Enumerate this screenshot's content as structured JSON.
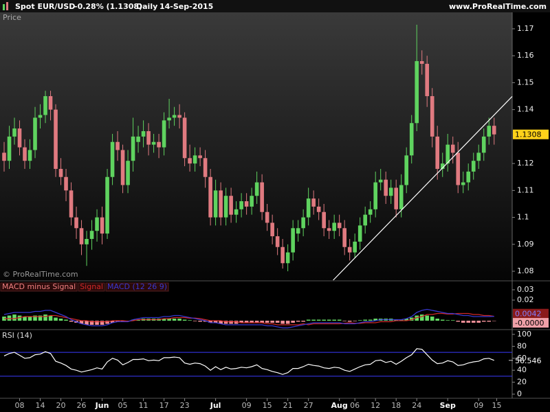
{
  "header": {
    "instrument": "Spot EUR/USD",
    "change": "-0.28% (1.1308)",
    "period": "Daily",
    "date": "14-Sep-2015",
    "site": "www.ProRealTime.com"
  },
  "chart_data": [
    {
      "type": "candlestick",
      "label": "Price",
      "watermark": "© ProRealTime.com",
      "up_color": "#5fd35f",
      "down_color": "#e07a80",
      "open": [
        1.124,
        1.121,
        1.13,
        1.133,
        1.126,
        1.121,
        1.125,
        1.137,
        1.138,
        1.145,
        1.14,
        1.118,
        1.115,
        1.11,
        1.1,
        1.096,
        1.09,
        1.092,
        1.095,
        1.1,
        1.094,
        1.115,
        1.128,
        1.125,
        1.112,
        1.121,
        1.128,
        1.13,
        1.132,
        1.127,
        1.128,
        1.126,
        1.136,
        1.137,
        1.138,
        1.137,
        1.122,
        1.12,
        1.123,
        1.122,
        1.115,
        1.1,
        1.11,
        1.1,
        1.108,
        1.101,
        1.103,
        1.106,
        1.104,
        1.108,
        1.113,
        1.102,
        1.098,
        1.093,
        1.089,
        1.083,
        1.087,
        1.094,
        1.096,
        1.1,
        1.107,
        1.104,
        1.102,
        1.096,
        1.095,
        1.098,
        1.096,
        1.089,
        1.087,
        1.091,
        1.097,
        1.101,
        1.103,
        1.113,
        1.114,
        1.108,
        1.111,
        1.103,
        1.112,
        1.123,
        1.135,
        1.158,
        1.157,
        1.145,
        1.13,
        1.118,
        1.12,
        1.127,
        1.124,
        1.112,
        1.113,
        1.117,
        1.121,
        1.124,
        1.13,
        1.134
      ],
      "high": [
        1.128,
        1.134,
        1.137,
        1.136,
        1.129,
        1.129,
        1.141,
        1.142,
        1.147,
        1.147,
        1.142,
        1.122,
        1.118,
        1.113,
        1.104,
        1.099,
        1.095,
        1.099,
        1.103,
        1.104,
        1.118,
        1.131,
        1.132,
        1.127,
        1.125,
        1.137,
        1.134,
        1.136,
        1.135,
        1.131,
        1.131,
        1.139,
        1.144,
        1.141,
        1.142,
        1.139,
        1.127,
        1.126,
        1.126,
        1.125,
        1.118,
        1.114,
        1.113,
        1.111,
        1.111,
        1.106,
        1.109,
        1.109,
        1.111,
        1.117,
        1.116,
        1.105,
        1.101,
        1.096,
        1.092,
        1.09,
        1.099,
        1.099,
        1.103,
        1.111,
        1.11,
        1.107,
        1.105,
        1.099,
        1.101,
        1.101,
        1.099,
        1.092,
        1.094,
        1.1,
        1.104,
        1.106,
        1.117,
        1.118,
        1.117,
        1.114,
        1.114,
        1.116,
        1.126,
        1.138,
        1.1715,
        1.162,
        1.16,
        1.148,
        1.134,
        1.124,
        1.131,
        1.13,
        1.128,
        1.117,
        1.12,
        1.124,
        1.127,
        1.133,
        1.137,
        1.137
      ],
      "low": [
        1.117,
        1.118,
        1.127,
        1.123,
        1.118,
        1.118,
        1.122,
        1.133,
        1.135,
        1.136,
        1.115,
        1.112,
        1.106,
        1.097,
        1.092,
        1.086,
        1.082,
        1.088,
        1.091,
        1.09,
        1.092,
        1.112,
        1.121,
        1.109,
        1.109,
        1.117,
        1.124,
        1.126,
        1.123,
        1.124,
        1.122,
        1.123,
        1.133,
        1.134,
        1.133,
        1.119,
        1.117,
        1.117,
        1.119,
        1.111,
        1.097,
        1.097,
        1.097,
        1.097,
        1.098,
        1.098,
        1.1,
        1.101,
        1.101,
        1.105,
        1.099,
        1.095,
        1.09,
        1.086,
        1.081,
        1.08,
        1.084,
        1.091,
        1.093,
        1.097,
        1.101,
        1.099,
        1.093,
        1.092,
        1.092,
        1.093,
        1.086,
        1.084,
        1.085,
        1.088,
        1.094,
        1.098,
        1.1,
        1.11,
        1.105,
        1.105,
        1.1,
        1.1,
        1.109,
        1.12,
        1.132,
        1.153,
        1.141,
        1.126,
        1.114,
        1.115,
        1.117,
        1.12,
        1.109,
        1.109,
        1.11,
        1.114,
        1.118,
        1.121,
        1.127,
        1.127
      ],
      "close": [
        1.121,
        1.13,
        1.133,
        1.126,
        1.121,
        1.125,
        1.137,
        1.138,
        1.145,
        1.14,
        1.118,
        1.115,
        1.11,
        1.1,
        1.096,
        1.09,
        1.092,
        1.095,
        1.1,
        1.094,
        1.115,
        1.128,
        1.125,
        1.112,
        1.121,
        1.13,
        1.13,
        1.132,
        1.127,
        1.128,
        1.126,
        1.136,
        1.137,
        1.138,
        1.137,
        1.122,
        1.12,
        1.123,
        1.122,
        1.115,
        1.1,
        1.11,
        1.1,
        1.108,
        1.101,
        1.103,
        1.106,
        1.104,
        1.108,
        1.113,
        1.102,
        1.098,
        1.093,
        1.089,
        1.083,
        1.087,
        1.096,
        1.096,
        1.1,
        1.107,
        1.104,
        1.102,
        1.096,
        1.095,
        1.098,
        1.096,
        1.089,
        1.087,
        1.091,
        1.097,
        1.101,
        1.103,
        1.113,
        1.114,
        1.108,
        1.111,
        1.103,
        1.112,
        1.123,
        1.135,
        1.158,
        1.157,
        1.145,
        1.13,
        1.118,
        1.12,
        1.127,
        1.124,
        1.112,
        1.113,
        1.117,
        1.121,
        1.124,
        1.13,
        1.134,
        1.1308
      ],
      "trendline": {
        "x": [
          63.8,
          98.5
        ],
        "y": [
          1.0767,
          1.1449
        ],
        "color": "#ffffff"
      },
      "ylim": [
        1.0767,
        1.1761
      ],
      "yticks": [
        1.08,
        1.09,
        1.1,
        1.11,
        1.12,
        1.14,
        1.15,
        1.16,
        1.17
      ]
    },
    {
      "type": "macd",
      "series": [
        {
          "name": "MACD minus Signal",
          "kind": "histogram",
          "color": "#66dd66",
          "negative_color": "#f09098",
          "values": [
            0.004,
            0.005,
            0.006,
            0.005,
            0.004,
            0.004,
            0.005,
            0.005,
            0.006,
            0.005,
            0.003,
            0.002,
            0.001,
            -0.001,
            -0.002,
            -0.003,
            -0.004,
            -0.004,
            -0.004,
            -0.004,
            -0.003,
            -0.002,
            -0.001,
            -0.001,
            -0.0005,
            0.001,
            0.001,
            0.002,
            0.002,
            0.002,
            0.002,
            0.002,
            0.002,
            0.002,
            0.002,
            0.001,
            0.0005,
            -0.0005,
            -0.001,
            -0.001,
            -0.002,
            -0.002,
            -0.003,
            -0.003,
            -0.003,
            -0.003,
            -0.002,
            -0.002,
            -0.002,
            -0.002,
            -0.002,
            -0.002,
            -0.002,
            -0.002,
            -0.003,
            -0.003,
            -0.002,
            -0.001,
            -0.001,
            0.001,
            0.001,
            0.001,
            0.001,
            0.001,
            0.001,
            0.001,
            -0.0005,
            -0.001,
            -0.0005,
            0.0005,
            0.001,
            0.001,
            0.002,
            0.002,
            0.002,
            0.002,
            0.001,
            0.001,
            0.002,
            0.003,
            0.005,
            0.006,
            0.005,
            0.004,
            0.002,
            0.001,
            0.0005,
            0.0005,
            -0.001,
            -0.002,
            -0.002,
            -0.002,
            -0.002,
            -0.001,
            -0.001,
            -3e-05
          ],
          "value_labels": [
            null,
            null,
            null,
            null,
            null,
            null,
            null,
            null,
            null,
            null,
            null,
            null,
            null,
            null,
            null,
            null,
            null,
            null,
            null,
            null,
            null,
            null,
            null,
            null,
            null,
            null,
            null,
            null,
            null,
            null,
            null,
            null,
            null,
            null,
            null,
            null,
            null,
            null,
            null,
            null,
            null,
            null,
            null,
            null,
            null,
            null,
            null,
            null,
            null,
            null,
            null,
            null,
            null,
            null,
            null,
            null,
            null,
            null,
            null,
            null,
            null,
            null,
            null,
            null,
            null,
            null,
            null,
            null,
            null,
            null,
            null,
            null,
            null,
            null,
            null,
            null,
            null,
            null,
            null,
            null,
            null,
            null,
            null,
            null,
            null,
            null,
            null,
            null,
            null,
            null,
            null,
            null,
            null,
            null,
            null,
            "-0.0000"
          ]
        },
        {
          "name": "Signal",
          "kind": "line",
          "color": "#d02828",
          "values": [
            0.002,
            0.002,
            0.002,
            0.003,
            0.004,
            0.004,
            0.004,
            0.004,
            0.004,
            0.005,
            0.005,
            0.004,
            0.003,
            0.002,
            0.001,
            0.0,
            0.0,
            -0.001,
            -0.001,
            -0.001,
            -0.001,
            0.0,
            0.0,
            0.0,
            -0.0005,
            0.0,
            0.001,
            0.001,
            0.001,
            0.001,
            0.001,
            0.002,
            0.002,
            0.003,
            0.003,
            0.003,
            0.0025,
            0.0025,
            0.002,
            0.001,
            0.0,
            0.0,
            0.0,
            -0.001,
            -0.001,
            -0.001,
            -0.002,
            -0.002,
            -0.002,
            -0.002,
            -0.002,
            -0.003,
            -0.003,
            -0.004,
            -0.004,
            -0.004,
            -0.004,
            -0.004,
            -0.003,
            -0.004,
            -0.003,
            -0.003,
            -0.003,
            -0.003,
            -0.003,
            -0.003,
            -0.0025,
            -0.002,
            -0.0025,
            -0.0025,
            -0.002,
            -0.002,
            -0.002,
            -0.001,
            -0.001,
            -0.001,
            0.0,
            0.0,
            0.0,
            0.001,
            0.003,
            0.004,
            0.006,
            0.006,
            0.007,
            0.007,
            0.0065,
            0.0065,
            0.007,
            0.007,
            0.007,
            0.006,
            0.006,
            0.005,
            0.005,
            0.00423
          ]
        },
        {
          "name": "MACD (12 26 9)",
          "kind": "line",
          "color": "#3838d0",
          "values": [
            0.006,
            0.007,
            0.008,
            0.008,
            0.008,
            0.008,
            0.009,
            0.009,
            0.01,
            0.01,
            0.008,
            0.006,
            0.004,
            0.001,
            -0.001,
            -0.003,
            -0.004,
            -0.005,
            -0.005,
            -0.005,
            -0.004,
            -0.002,
            -0.001,
            -0.001,
            -0.001,
            0.001,
            0.002,
            0.003,
            0.003,
            0.003,
            0.003,
            0.004,
            0.004,
            0.005,
            0.005,
            0.004,
            0.003,
            0.002,
            0.001,
            0.0,
            -0.002,
            -0.002,
            -0.003,
            -0.004,
            -0.004,
            -0.004,
            -0.004,
            -0.004,
            -0.004,
            -0.004,
            -0.004,
            -0.005,
            -0.005,
            -0.006,
            -0.007,
            -0.007,
            -0.006,
            -0.005,
            -0.004,
            -0.003,
            -0.002,
            -0.002,
            -0.002,
            -0.002,
            -0.002,
            -0.002,
            -0.003,
            -0.003,
            -0.003,
            -0.002,
            -0.001,
            -0.001,
            0.0,
            0.001,
            0.001,
            0.001,
            0.001,
            0.001,
            0.002,
            0.004,
            0.008,
            0.01,
            0.011,
            0.01,
            0.009,
            0.008,
            0.007,
            0.007,
            0.006,
            0.005,
            0.005,
            0.004,
            0.004,
            0.004,
            0.004,
            0.0042
          ]
        }
      ],
      "ylim": [
        -0.0073,
        0.038
      ],
      "yticks": [
        0.02,
        0.03
      ]
    },
    {
      "type": "line",
      "series": [
        {
          "name": "RSI (14)",
          "color": "#ffffff",
          "values": [
            64,
            68,
            70,
            65,
            60,
            61,
            66,
            67,
            71,
            68,
            55,
            52,
            48,
            42,
            40,
            37,
            39,
            41,
            44,
            42,
            54,
            60,
            57,
            49,
            53,
            58,
            58,
            59,
            56,
            57,
            56,
            61,
            61,
            62,
            61,
            52,
            50,
            52,
            51,
            47,
            40,
            46,
            41,
            45,
            42,
            43,
            45,
            44,
            46,
            49,
            43,
            41,
            38,
            36,
            33,
            36,
            43,
            43,
            46,
            50,
            48,
            47,
            44,
            43,
            45,
            44,
            40,
            38,
            42,
            46,
            49,
            50,
            56,
            57,
            53,
            55,
            50,
            55,
            61,
            66,
            76,
            75,
            66,
            57,
            51,
            52,
            56,
            54,
            48,
            49,
            52,
            54,
            55,
            59,
            60,
            56.546
          ]
        }
      ],
      "levels": [
        70,
        30
      ],
      "level_color": "#3a3aff",
      "ylim": [
        -6.9,
        105.7
      ],
      "yticks": [
        0,
        20,
        40,
        60,
        80,
        100
      ],
      "xlim": [
        -0.8,
        98.5
      ],
      "xticks": [
        {
          "value": 3,
          "label": "08"
        },
        {
          "value": 7,
          "label": "14"
        },
        {
          "value": 11,
          "label": "20"
        },
        {
          "value": 15,
          "label": "26"
        },
        {
          "value": 19,
          "label": "Jun"
        },
        {
          "value": 23,
          "label": "05"
        },
        {
          "value": 27,
          "label": "11"
        },
        {
          "value": 31,
          "label": "17"
        },
        {
          "value": 35,
          "label": "23"
        },
        {
          "value": 41,
          "label": "Jul"
        },
        {
          "value": 47,
          "label": "09"
        },
        {
          "value": 51,
          "label": "15"
        },
        {
          "value": 55,
          "label": "21"
        },
        {
          "value": 59,
          "label": "27"
        },
        {
          "value": 65,
          "label": "Aug"
        },
        {
          "value": 68,
          "label": "06"
        },
        {
          "value": 72,
          "label": "12"
        },
        {
          "value": 76,
          "label": "18"
        },
        {
          "value": 80,
          "label": "24"
        },
        {
          "value": 86,
          "label": "Sep"
        },
        {
          "value": 92,
          "label": "09"
        },
        {
          "value": 95.5,
          "label": "15"
        }
      ]
    }
  ]
}
